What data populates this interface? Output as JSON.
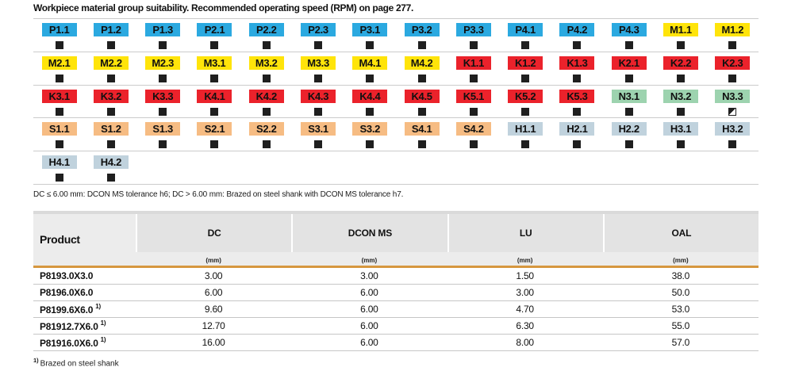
{
  "title": "Workpiece material group suitability. Recommended operating speed (RPM) on page 277.",
  "tolerance_note": "DC ≤ 6.00 mm: DCON MS tolerance h6; DC > 6.00 mm: Brazed on steel shank with DCON MS tolerance h7.",
  "badge_colors": {
    "P": "#2BA9E0",
    "M": "#FFE40A",
    "K": "#EB222B",
    "N": "#9DD3AF",
    "S": "#F6BC83",
    "H": "#C0D2DD"
  },
  "marker_color": "#1f1f1f",
  "accent_color": "#D6973F",
  "material_grid": {
    "rows": [
      {
        "cells": [
          {
            "label": "P1.1",
            "marker": "full"
          },
          {
            "label": "P1.2",
            "marker": "full"
          },
          {
            "label": "P1.3",
            "marker": "full"
          },
          {
            "label": "P2.1",
            "marker": "full"
          },
          {
            "label": "P2.2",
            "marker": "full"
          },
          {
            "label": "P2.3",
            "marker": "full"
          },
          {
            "label": "P3.1",
            "marker": "full"
          },
          {
            "label": "P3.2",
            "marker": "full"
          },
          {
            "label": "P3.3",
            "marker": "full"
          },
          {
            "label": "P4.1",
            "marker": "full"
          },
          {
            "label": "P4.2",
            "marker": "full"
          },
          {
            "label": "P4.3",
            "marker": "full"
          },
          {
            "label": "M1.1",
            "marker": "full"
          },
          {
            "label": "M1.2",
            "marker": "full"
          }
        ]
      },
      {
        "cells": [
          {
            "label": "M2.1",
            "marker": "full"
          },
          {
            "label": "M2.2",
            "marker": "full"
          },
          {
            "label": "M2.3",
            "marker": "full"
          },
          {
            "label": "M3.1",
            "marker": "full"
          },
          {
            "label": "M3.2",
            "marker": "full"
          },
          {
            "label": "M3.3",
            "marker": "full"
          },
          {
            "label": "M4.1",
            "marker": "full"
          },
          {
            "label": "M4.2",
            "marker": "full"
          },
          {
            "label": "K1.1",
            "marker": "full"
          },
          {
            "label": "K1.2",
            "marker": "full"
          },
          {
            "label": "K1.3",
            "marker": "full"
          },
          {
            "label": "K2.1",
            "marker": "full"
          },
          {
            "label": "K2.2",
            "marker": "full"
          },
          {
            "label": "K2.3",
            "marker": "full"
          }
        ]
      },
      {
        "cells": [
          {
            "label": "K3.1",
            "marker": "full"
          },
          {
            "label": "K3.2",
            "marker": "full"
          },
          {
            "label": "K3.3",
            "marker": "full"
          },
          {
            "label": "K4.1",
            "marker": "full"
          },
          {
            "label": "K4.2",
            "marker": "full"
          },
          {
            "label": "K4.3",
            "marker": "full"
          },
          {
            "label": "K4.4",
            "marker": "full"
          },
          {
            "label": "K4.5",
            "marker": "full"
          },
          {
            "label": "K5.1",
            "marker": "full"
          },
          {
            "label": "K5.2",
            "marker": "full"
          },
          {
            "label": "K5.3",
            "marker": "full"
          },
          {
            "label": "N3.1",
            "marker": "full"
          },
          {
            "label": "N3.2",
            "marker": "full"
          },
          {
            "label": "N3.3",
            "marker": "half"
          }
        ]
      },
      {
        "cells": [
          {
            "label": "S1.1",
            "marker": "full"
          },
          {
            "label": "S1.2",
            "marker": "full"
          },
          {
            "label": "S1.3",
            "marker": "full"
          },
          {
            "label": "S2.1",
            "marker": "full"
          },
          {
            "label": "S2.2",
            "marker": "full"
          },
          {
            "label": "S3.1",
            "marker": "full"
          },
          {
            "label": "S3.2",
            "marker": "full"
          },
          {
            "label": "S4.1",
            "marker": "full"
          },
          {
            "label": "S4.2",
            "marker": "full"
          },
          {
            "label": "H1.1",
            "marker": "full"
          },
          {
            "label": "H2.1",
            "marker": "full"
          },
          {
            "label": "H2.2",
            "marker": "full"
          },
          {
            "label": "H3.1",
            "marker": "full"
          },
          {
            "label": "H3.2",
            "marker": "full"
          }
        ]
      },
      {
        "cells": [
          {
            "label": "H4.1",
            "marker": "full"
          },
          {
            "label": "H4.2",
            "marker": "full"
          }
        ]
      }
    ]
  },
  "table": {
    "product_header": "Product",
    "columns": [
      {
        "label": "DC",
        "unit": "(mm)"
      },
      {
        "label": "DCON MS",
        "unit": "(mm)"
      },
      {
        "label": "LU",
        "unit": "(mm)"
      },
      {
        "label": "OAL",
        "unit": "(mm)"
      }
    ],
    "rows": [
      {
        "product": "P8193.0X3.0",
        "footnote": "",
        "values": [
          "3.00",
          "3.00",
          "1.50",
          "38.0"
        ]
      },
      {
        "product": "P8196.0X6.0",
        "footnote": "",
        "values": [
          "6.00",
          "6.00",
          "3.00",
          "50.0"
        ]
      },
      {
        "product": "P8199.6X6.0",
        "footnote": "1)",
        "values": [
          "9.60",
          "6.00",
          "4.70",
          "53.0"
        ]
      },
      {
        "product": "P81912.7X6.0",
        "footnote": "1)",
        "values": [
          "12.70",
          "6.00",
          "6.30",
          "55.0"
        ]
      },
      {
        "product": "P81916.0X6.0",
        "footnote": "1)",
        "values": [
          "16.00",
          "6.00",
          "8.00",
          "57.0"
        ]
      }
    ]
  },
  "footnote": {
    "marker": "1)",
    "text": "Brazed on steel shank"
  }
}
